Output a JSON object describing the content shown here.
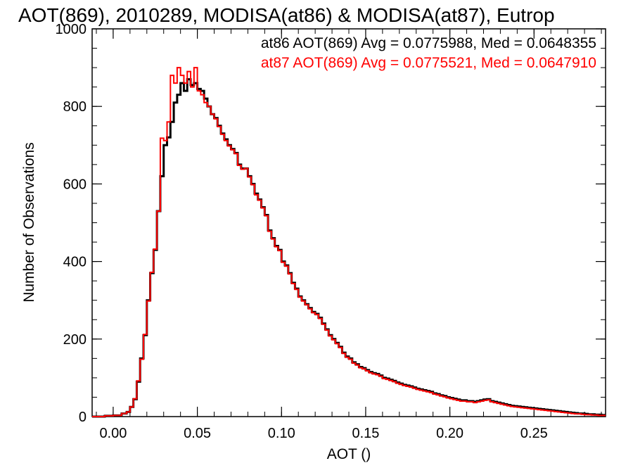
{
  "chart_data": {
    "type": "histogram",
    "title": "AOT(869), 2010289, MODISA(at86) & MODISA(at87), Eutrop",
    "xlabel": "AOT ()",
    "ylabel": "Number of Observations",
    "xlim": [
      -0.0125,
      0.2925
    ],
    "ylim": [
      0,
      1000
    ],
    "xticks": [
      {
        "value": 0.0,
        "label": "0.00"
      },
      {
        "value": 0.05,
        "label": "0.05"
      },
      {
        "value": 0.1,
        "label": "0.10"
      },
      {
        "value": 0.15,
        "label": "0.15"
      },
      {
        "value": 0.2,
        "label": "0.20"
      },
      {
        "value": 0.25,
        "label": "0.25"
      }
    ],
    "yticks": [
      {
        "value": 0,
        "label": "0"
      },
      {
        "value": 200,
        "label": "200"
      },
      {
        "value": 400,
        "label": "400"
      },
      {
        "value": 600,
        "label": "600"
      },
      {
        "value": 800,
        "label": "800"
      },
      {
        "value": 1000,
        "label": "1000"
      }
    ],
    "annotations": [
      {
        "text": "at86 AOT(869) Avg = 0.0775988, Med = 0.0648355",
        "color": "#000000"
      },
      {
        "text": "at87 AOT(869) Avg = 0.0775521, Med = 0.0647910",
        "color": "#ff0000"
      }
    ],
    "series": [
      {
        "name": "at86",
        "color": "#000000",
        "points": [
          [
            -0.0125,
            0
          ],
          [
            -0.005,
            2
          ],
          [
            0.0,
            3
          ],
          [
            0.005,
            8
          ],
          [
            0.008,
            12
          ],
          [
            0.01,
            25
          ],
          [
            0.012,
            45
          ],
          [
            0.014,
            90
          ],
          [
            0.016,
            150
          ],
          [
            0.018,
            210
          ],
          [
            0.02,
            300
          ],
          [
            0.022,
            370
          ],
          [
            0.024,
            430
          ],
          [
            0.026,
            530
          ],
          [
            0.028,
            620
          ],
          [
            0.03,
            700
          ],
          [
            0.032,
            720
          ],
          [
            0.034,
            760
          ],
          [
            0.036,
            810
          ],
          [
            0.038,
            830
          ],
          [
            0.04,
            860
          ],
          [
            0.042,
            840
          ],
          [
            0.044,
            870
          ],
          [
            0.046,
            855
          ],
          [
            0.048,
            860
          ],
          [
            0.05,
            845
          ],
          [
            0.052,
            840
          ],
          [
            0.054,
            820
          ],
          [
            0.056,
            800
          ],
          [
            0.058,
            780
          ],
          [
            0.06,
            770
          ],
          [
            0.062,
            750
          ],
          [
            0.064,
            730
          ],
          [
            0.066,
            715
          ],
          [
            0.068,
            700
          ],
          [
            0.07,
            690
          ],
          [
            0.072,
            680
          ],
          [
            0.074,
            650
          ],
          [
            0.076,
            640
          ],
          [
            0.078,
            640
          ],
          [
            0.08,
            620
          ],
          [
            0.082,
            600
          ],
          [
            0.084,
            575
          ],
          [
            0.086,
            560
          ],
          [
            0.088,
            540
          ],
          [
            0.09,
            520
          ],
          [
            0.092,
            480
          ],
          [
            0.094,
            460
          ],
          [
            0.096,
            440
          ],
          [
            0.098,
            430
          ],
          [
            0.1,
            400
          ],
          [
            0.102,
            390
          ],
          [
            0.104,
            370
          ],
          [
            0.106,
            345
          ],
          [
            0.108,
            330
          ],
          [
            0.11,
            310
          ],
          [
            0.112,
            300
          ],
          [
            0.114,
            290
          ],
          [
            0.116,
            280
          ],
          [
            0.118,
            270
          ],
          [
            0.12,
            265
          ],
          [
            0.122,
            255
          ],
          [
            0.124,
            240
          ],
          [
            0.126,
            225
          ],
          [
            0.128,
            210
          ],
          [
            0.13,
            200
          ],
          [
            0.132,
            190
          ],
          [
            0.134,
            180
          ],
          [
            0.136,
            165
          ],
          [
            0.138,
            155
          ],
          [
            0.14,
            150
          ],
          [
            0.142,
            140
          ],
          [
            0.144,
            135
          ],
          [
            0.146,
            128
          ],
          [
            0.148,
            125
          ],
          [
            0.15,
            120
          ],
          [
            0.152,
            115
          ],
          [
            0.154,
            112
          ],
          [
            0.156,
            110
          ],
          [
            0.158,
            106
          ],
          [
            0.16,
            100
          ],
          [
            0.162,
            98
          ],
          [
            0.164,
            95
          ],
          [
            0.166,
            92
          ],
          [
            0.168,
            88
          ],
          [
            0.17,
            85
          ],
          [
            0.172,
            82
          ],
          [
            0.174,
            80
          ],
          [
            0.176,
            78
          ],
          [
            0.178,
            75
          ],
          [
            0.18,
            72
          ],
          [
            0.182,
            70
          ],
          [
            0.184,
            68
          ],
          [
            0.186,
            66
          ],
          [
            0.188,
            64
          ],
          [
            0.19,
            60
          ],
          [
            0.192,
            58
          ],
          [
            0.194,
            55
          ],
          [
            0.196,
            53
          ],
          [
            0.198,
            50
          ],
          [
            0.2,
            48
          ],
          [
            0.202,
            46
          ],
          [
            0.204,
            44
          ],
          [
            0.206,
            42
          ],
          [
            0.208,
            42
          ],
          [
            0.21,
            40
          ],
          [
            0.212,
            40
          ],
          [
            0.214,
            38
          ],
          [
            0.216,
            40
          ],
          [
            0.218,
            42
          ],
          [
            0.22,
            44
          ],
          [
            0.222,
            45
          ],
          [
            0.224,
            40
          ],
          [
            0.226,
            38
          ],
          [
            0.228,
            36
          ],
          [
            0.23,
            34
          ],
          [
            0.232,
            32
          ],
          [
            0.234,
            30
          ],
          [
            0.236,
            28
          ],
          [
            0.238,
            27
          ],
          [
            0.24,
            26
          ],
          [
            0.242,
            25
          ],
          [
            0.244,
            24
          ],
          [
            0.246,
            23
          ],
          [
            0.248,
            22
          ],
          [
            0.25,
            21
          ],
          [
            0.252,
            20
          ],
          [
            0.254,
            19
          ],
          [
            0.256,
            18
          ],
          [
            0.258,
            17
          ],
          [
            0.26,
            16
          ],
          [
            0.262,
            15
          ],
          [
            0.264,
            14
          ],
          [
            0.266,
            13
          ],
          [
            0.268,
            12
          ],
          [
            0.27,
            11
          ],
          [
            0.272,
            10
          ],
          [
            0.274,
            9
          ],
          [
            0.276,
            8
          ],
          [
            0.278,
            8
          ],
          [
            0.28,
            7
          ],
          [
            0.282,
            6
          ],
          [
            0.284,
            6
          ],
          [
            0.286,
            5
          ],
          [
            0.288,
            5
          ],
          [
            0.29,
            4
          ],
          [
            0.2925,
            4
          ]
        ]
      },
      {
        "name": "at87",
        "color": "#ff0000",
        "points": [
          [
            -0.0125,
            0
          ],
          [
            -0.005,
            2
          ],
          [
            0.0,
            3
          ],
          [
            0.005,
            8
          ],
          [
            0.008,
            12
          ],
          [
            0.01,
            25
          ],
          [
            0.012,
            46
          ],
          [
            0.014,
            92
          ],
          [
            0.016,
            148
          ],
          [
            0.018,
            212
          ],
          [
            0.02,
            298
          ],
          [
            0.022,
            372
          ],
          [
            0.024,
            432
          ],
          [
            0.026,
            530
          ],
          [
            0.028,
            718
          ],
          [
            0.03,
            712
          ],
          [
            0.032,
            760
          ],
          [
            0.034,
            880
          ],
          [
            0.036,
            860
          ],
          [
            0.038,
            900
          ],
          [
            0.04,
            880
          ],
          [
            0.042,
            860
          ],
          [
            0.044,
            890
          ],
          [
            0.046,
            850
          ],
          [
            0.048,
            900
          ],
          [
            0.05,
            840
          ],
          [
            0.052,
            830
          ],
          [
            0.054,
            810
          ],
          [
            0.056,
            800
          ],
          [
            0.058,
            780
          ],
          [
            0.06,
            768
          ],
          [
            0.062,
            748
          ],
          [
            0.064,
            728
          ],
          [
            0.066,
            712
          ],
          [
            0.068,
            698
          ],
          [
            0.07,
            688
          ],
          [
            0.072,
            678
          ],
          [
            0.074,
            648
          ],
          [
            0.076,
            638
          ],
          [
            0.078,
            640
          ],
          [
            0.08,
            618
          ],
          [
            0.082,
            598
          ],
          [
            0.084,
            572
          ],
          [
            0.086,
            558
          ],
          [
            0.088,
            538
          ],
          [
            0.09,
            518
          ],
          [
            0.092,
            478
          ],
          [
            0.094,
            458
          ],
          [
            0.096,
            438
          ],
          [
            0.098,
            428
          ],
          [
            0.1,
            398
          ],
          [
            0.102,
            388
          ],
          [
            0.104,
            368
          ],
          [
            0.106,
            343
          ],
          [
            0.108,
            328
          ],
          [
            0.11,
            308
          ],
          [
            0.112,
            298
          ],
          [
            0.114,
            288
          ],
          [
            0.116,
            278
          ],
          [
            0.118,
            268
          ],
          [
            0.12,
            263
          ],
          [
            0.122,
            253
          ],
          [
            0.124,
            238
          ],
          [
            0.126,
            223
          ],
          [
            0.128,
            208
          ],
          [
            0.13,
            198
          ],
          [
            0.132,
            188
          ],
          [
            0.134,
            178
          ],
          [
            0.136,
            163
          ],
          [
            0.138,
            153
          ],
          [
            0.14,
            148
          ],
          [
            0.142,
            138
          ],
          [
            0.144,
            133
          ],
          [
            0.146,
            126
          ],
          [
            0.148,
            123
          ],
          [
            0.15,
            118
          ],
          [
            0.152,
            113
          ],
          [
            0.154,
            110
          ],
          [
            0.156,
            108
          ],
          [
            0.158,
            104
          ],
          [
            0.16,
            98
          ],
          [
            0.162,
            96
          ],
          [
            0.164,
            93
          ],
          [
            0.166,
            90
          ],
          [
            0.168,
            86
          ],
          [
            0.17,
            83
          ],
          [
            0.172,
            80
          ],
          [
            0.174,
            78
          ],
          [
            0.176,
            76
          ],
          [
            0.178,
            73
          ],
          [
            0.18,
            70
          ],
          [
            0.182,
            68
          ],
          [
            0.184,
            66
          ],
          [
            0.186,
            64
          ],
          [
            0.188,
            62
          ],
          [
            0.19,
            58
          ],
          [
            0.192,
            56
          ],
          [
            0.194,
            53
          ],
          [
            0.196,
            51
          ],
          [
            0.198,
            48
          ],
          [
            0.2,
            46
          ],
          [
            0.202,
            44
          ],
          [
            0.204,
            42
          ],
          [
            0.206,
            40
          ],
          [
            0.208,
            40
          ],
          [
            0.21,
            38
          ],
          [
            0.212,
            38
          ],
          [
            0.214,
            36
          ],
          [
            0.216,
            38
          ],
          [
            0.218,
            40
          ],
          [
            0.22,
            42
          ],
          [
            0.222,
            43
          ],
          [
            0.224,
            38
          ],
          [
            0.226,
            36
          ],
          [
            0.228,
            34
          ],
          [
            0.23,
            32
          ],
          [
            0.232,
            30
          ],
          [
            0.234,
            28
          ],
          [
            0.236,
            26
          ],
          [
            0.238,
            25
          ],
          [
            0.24,
            24
          ],
          [
            0.242,
            23
          ],
          [
            0.244,
            22
          ],
          [
            0.246,
            21
          ],
          [
            0.248,
            20
          ],
          [
            0.25,
            19
          ],
          [
            0.252,
            18
          ],
          [
            0.254,
            17
          ],
          [
            0.256,
            16
          ],
          [
            0.258,
            15
          ],
          [
            0.26,
            14
          ],
          [
            0.262,
            13
          ],
          [
            0.264,
            12
          ],
          [
            0.266,
            11
          ],
          [
            0.268,
            10
          ],
          [
            0.27,
            9
          ],
          [
            0.272,
            8
          ],
          [
            0.274,
            7
          ],
          [
            0.276,
            7
          ],
          [
            0.278,
            6
          ],
          [
            0.28,
            5
          ],
          [
            0.282,
            5
          ],
          [
            0.284,
            4
          ],
          [
            0.286,
            4
          ],
          [
            0.288,
            3
          ],
          [
            0.29,
            3
          ],
          [
            0.2925,
            3
          ]
        ]
      }
    ]
  }
}
